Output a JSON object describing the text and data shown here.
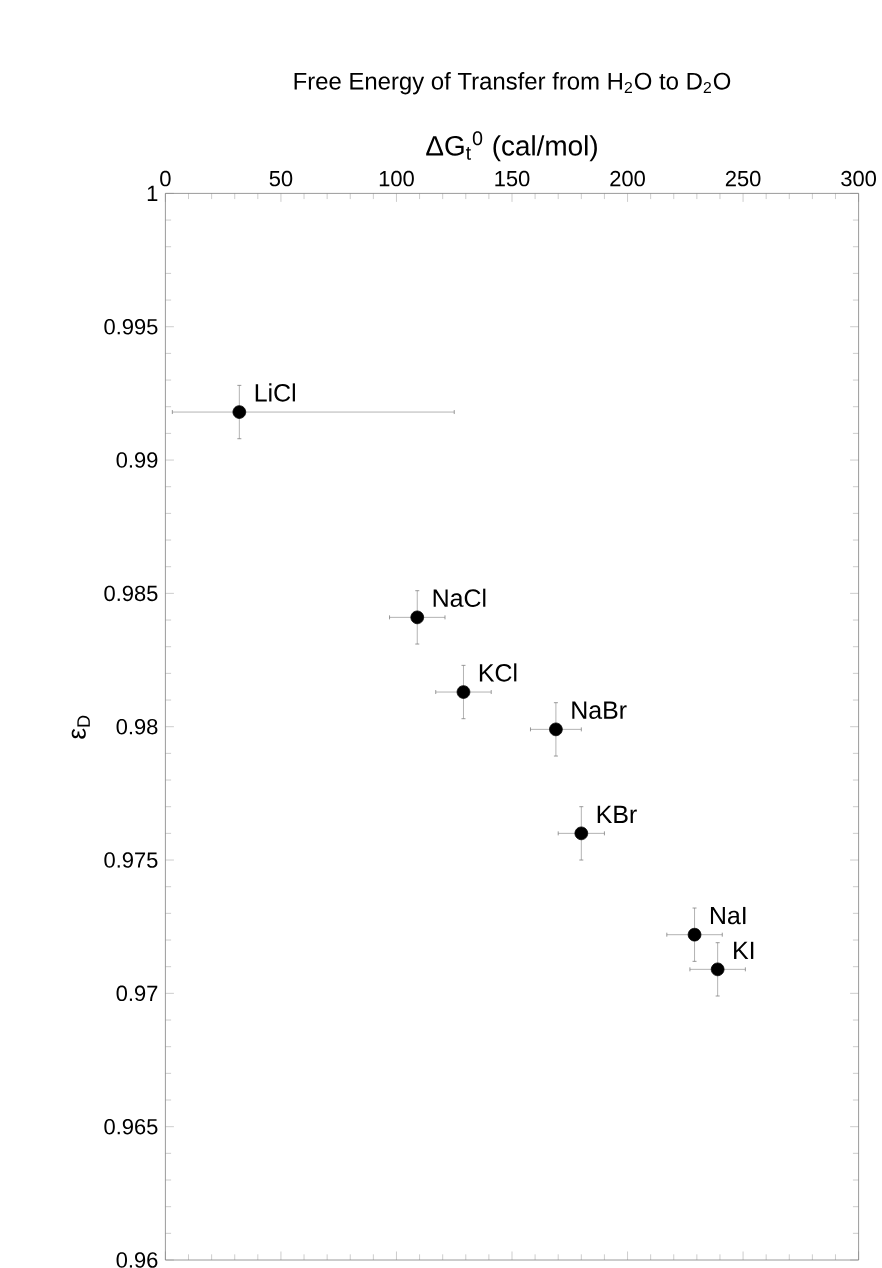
{
  "chart_data": {
    "type": "scatter",
    "title": "Free Energy of Transfer from H$_{2}$O to D$_{2}$O",
    "xlabel": "ΔG$_{t}$$^{0}$ (cal/mol)",
    "ylabel": "ε$_{D}$",
    "x": [
      32,
      109,
      129,
      169,
      180,
      229,
      239
    ],
    "values": [
      0.9918,
      0.9841,
      0.9813,
      0.9799,
      0.976,
      0.9722,
      0.9709
    ],
    "errors": [
      0.001,
      0.001,
      0.001,
      0.001,
      0.001,
      0.001,
      0.001
    ],
    "xerrors": [
      [
        3,
        125
      ],
      12,
      12,
      11,
      10,
      12,
      12
    ],
    "color": "#000000",
    "marker": "circle",
    "xlim": [
      0,
      300
    ],
    "xticks": [
      0,
      50,
      100,
      150,
      200,
      250,
      300
    ],
    "ylim": [
      0.96,
      1
    ],
    "yticks": [
      0.96,
      0.965,
      0.97,
      0.975,
      0.98,
      0.985,
      0.99,
      0.995,
      1
    ],
    "annotations": [
      {
        "text": "LiCl",
        "x": 32,
        "y": 0.9918
      },
      {
        "text": "NaCl",
        "x": 109,
        "y": 0.9841
      },
      {
        "text": "KCl",
        "x": 129,
        "y": 0.9813
      },
      {
        "text": "NaBr",
        "x": 169,
        "y": 0.9799
      },
      {
        "text": "KBr",
        "x": 180,
        "y": 0.976
      },
      {
        "text": "NaI",
        "x": 229,
        "y": 0.9722
      },
      {
        "text": "KI",
        "x": 239,
        "y": 0.9709
      }
    ]
  }
}
